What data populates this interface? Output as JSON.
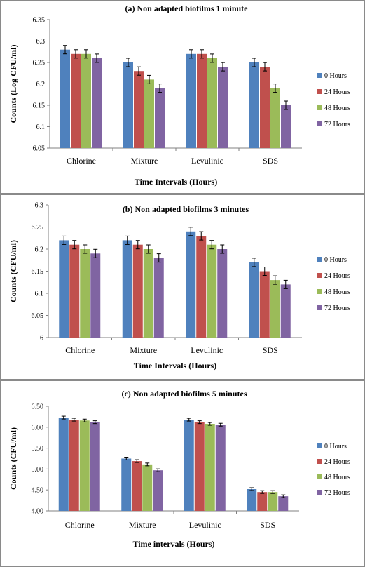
{
  "palette": [
    "#4f81bd",
    "#c0504d",
    "#9bbb59",
    "#8064a2"
  ],
  "chart_data": [
    {
      "type": "bar",
      "title": "(a) Non adapted biofilms 1 minute",
      "xlabel": "Time Intervals (Hours)",
      "ylabel": "Counts (Log CFU/ml)",
      "categories": [
        "Chlorine",
        "Mixture",
        "Levulinic",
        "SDS"
      ],
      "ylim": [
        6.05,
        6.35
      ],
      "yticks": [
        "6.05",
        "6.1",
        "6.15",
        "6.2",
        "6.25",
        "6.3",
        "6.35"
      ],
      "error_bars": true,
      "legend_position": "right",
      "series": [
        {
          "name": "0 Hours",
          "values": [
            6.28,
            6.25,
            6.27,
            6.25
          ]
        },
        {
          "name": "24 Hours",
          "values": [
            6.27,
            6.23,
            6.27,
            6.24
          ]
        },
        {
          "name": "48 Hours",
          "values": [
            6.27,
            6.21,
            6.26,
            6.19
          ]
        },
        {
          "name": "72 Hours",
          "values": [
            6.26,
            6.19,
            6.24,
            6.15
          ]
        }
      ]
    },
    {
      "type": "bar",
      "title": "(b) Non adapted biofilms 3 minutes",
      "xlabel": "Time Intervals (Hours)",
      "ylabel": "Counts (CFU/ml)",
      "categories": [
        "Chlorine",
        "Mixture",
        "Levulinic",
        "SDS"
      ],
      "ylim": [
        6,
        6.3
      ],
      "yticks": [
        "6",
        "6.05",
        "6.1",
        "6.15",
        "6.2",
        "6.25",
        "6.3"
      ],
      "error_bars": true,
      "legend_position": "right",
      "series": [
        {
          "name": "0 Hours",
          "values": [
            6.22,
            6.22,
            6.24,
            6.17
          ]
        },
        {
          "name": "24 Hours",
          "values": [
            6.21,
            6.21,
            6.23,
            6.15
          ]
        },
        {
          "name": "48 Hours",
          "values": [
            6.2,
            6.2,
            6.21,
            6.13
          ]
        },
        {
          "name": "72 Hours",
          "values": [
            6.19,
            6.18,
            6.2,
            6.12
          ]
        }
      ]
    },
    {
      "type": "bar",
      "title": "(c) Non adapted biofilms 5 minutes",
      "xlabel": "Time intervals (Hours)",
      "ylabel": "Counts (CFU/ml)",
      "categories": [
        "Chlorine",
        "Mixture",
        "Levulinic",
        "SDS"
      ],
      "ylim": [
        4.0,
        6.5
      ],
      "yticks": [
        "4.00",
        "4.50",
        "5.00",
        "5.50",
        "6.00",
        "6.50"
      ],
      "error_bars": true,
      "legend_position": "right",
      "series": [
        {
          "name": "0 Hours",
          "values": [
            6.23,
            5.25,
            6.18,
            4.52
          ]
        },
        {
          "name": "24 Hours",
          "values": [
            6.18,
            5.19,
            6.12,
            4.45
          ]
        },
        {
          "name": "48 Hours",
          "values": [
            6.16,
            5.11,
            6.08,
            4.45
          ]
        },
        {
          "name": "72 Hours",
          "values": [
            6.12,
            4.97,
            6.06,
            4.35
          ]
        }
      ]
    }
  ]
}
